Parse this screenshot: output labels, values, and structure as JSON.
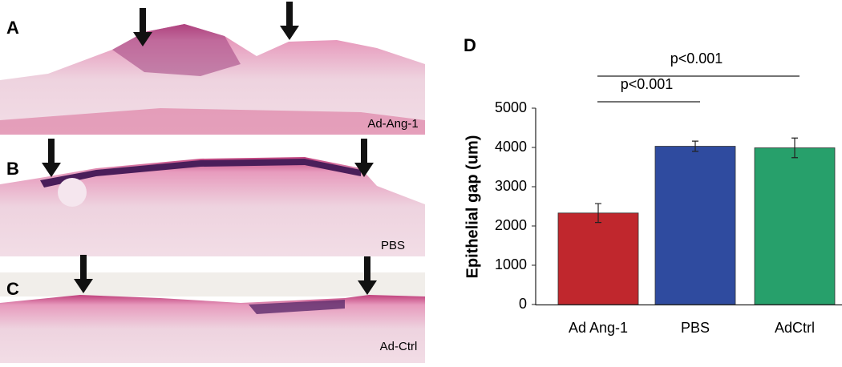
{
  "panels": [
    {
      "label": "A",
      "caption": "Ad-Ang-1"
    },
    {
      "label": "B",
      "caption": "PBS"
    },
    {
      "label": "C",
      "caption": "Ad-Ctrl"
    }
  ],
  "chart_data": {
    "type": "bar",
    "panel_label": "D",
    "y_label": "Epithelial gap (um)",
    "categories": [
      "Ad Ang-1",
      "PBS",
      "AdCtrl"
    ],
    "values": [
      2330,
      4030,
      3990
    ],
    "errors": [
      240,
      130,
      250
    ],
    "colors": [
      "#c0272d",
      "#2f4b9f",
      "#27a06b"
    ],
    "ylim": [
      0,
      5000
    ],
    "yticks": [
      0,
      1000,
      2000,
      3000,
      4000,
      5000
    ],
    "annotations": [
      "p<0.001",
      "p<0.001"
    ]
  }
}
